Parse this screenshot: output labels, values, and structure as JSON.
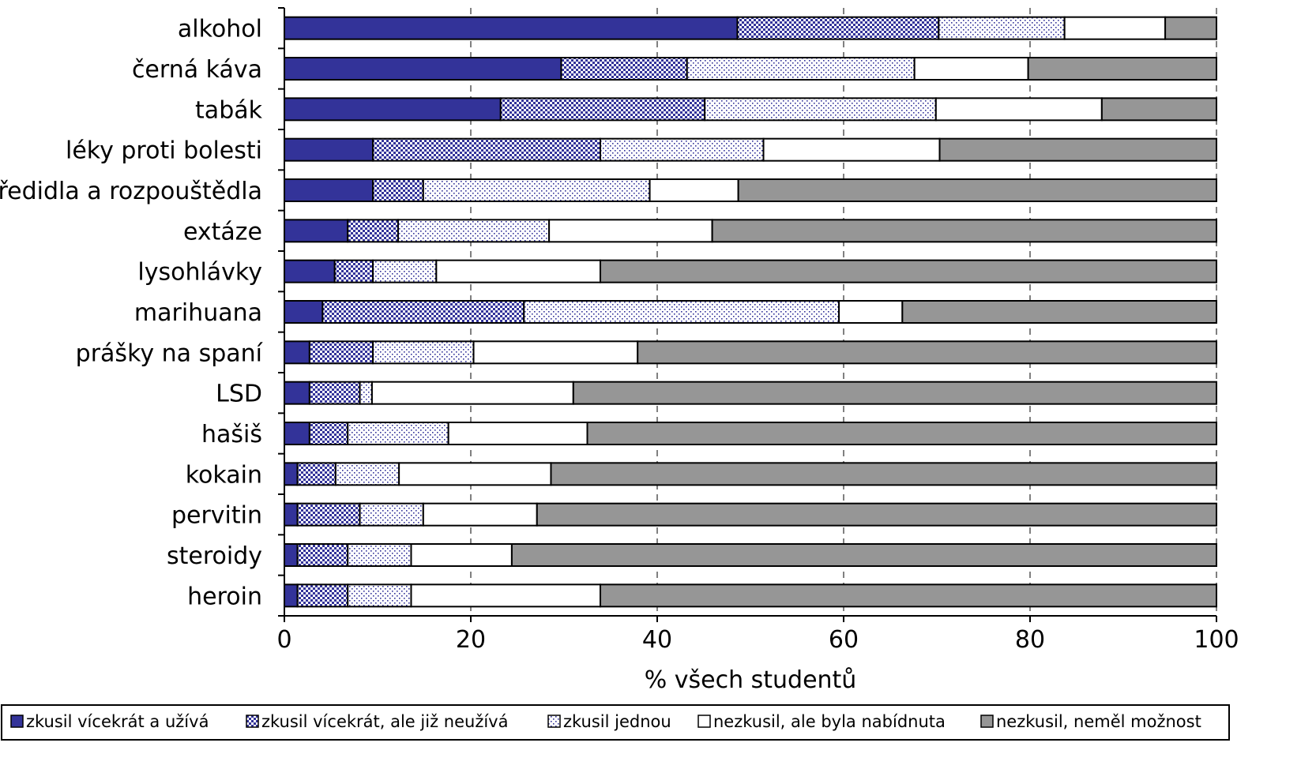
{
  "chart_data": {
    "type": "bar",
    "orientation": "horizontal",
    "stacked": true,
    "title": "",
    "xlabel": "% všech studentů",
    "ylabel": "",
    "xlim": [
      0,
      100
    ],
    "xticks": [
      0,
      20,
      40,
      60,
      80,
      100
    ],
    "grid": "vertical dashed",
    "legend_position": "bottom",
    "categories": [
      "alkohol",
      "černá káva",
      "tabák",
      "léky proti bolesti",
      "ředidla a rozpouštědla",
      "extáze",
      "lysohlávky",
      "marihuana",
      "prášky na spaní",
      "LSD",
      "hašiš",
      "kokain",
      "pervitin",
      "steroidy",
      "heroin"
    ],
    "series": [
      {
        "name": "zkusil vícekrát a užívá",
        "color": "#333399",
        "pattern": "solid",
        "values": [
          48.6,
          29.7,
          23.2,
          9.5,
          9.5,
          6.8,
          5.4,
          4.1,
          2.7,
          2.7,
          2.7,
          1.4,
          1.4,
          1.4,
          1.4
        ]
      },
      {
        "name": "zkusil vícekrát, ale již neužívá",
        "color": "#333399",
        "pattern": "checker",
        "values": [
          21.6,
          13.5,
          21.9,
          24.4,
          5.4,
          5.4,
          4.1,
          21.6,
          6.8,
          5.4,
          4.1,
          4.1,
          6.7,
          5.4,
          5.4
        ]
      },
      {
        "name": "zkusil jednou",
        "color": "#333399",
        "pattern": "dots",
        "values": [
          13.5,
          24.4,
          24.8,
          17.5,
          24.3,
          16.2,
          6.8,
          33.8,
          10.8,
          1.3,
          10.8,
          6.8,
          6.8,
          6.8,
          6.8
        ]
      },
      {
        "name": "nezkusil, ale byla nabídnuta",
        "color": "#ffffff",
        "pattern": "solid",
        "values": [
          10.8,
          12.2,
          17.8,
          18.9,
          9.5,
          17.5,
          17.6,
          6.8,
          17.6,
          21.6,
          14.9,
          16.3,
          12.2,
          10.8,
          20.3
        ]
      },
      {
        "name": "nezkusil, neměl možnost",
        "color": "#969696",
        "pattern": "solid",
        "values": [
          5.5,
          20.2,
          12.3,
          29.7,
          51.3,
          54.1,
          66.1,
          33.7,
          62.1,
          69.0,
          67.5,
          71.4,
          72.9,
          75.6,
          66.1
        ]
      }
    ]
  }
}
